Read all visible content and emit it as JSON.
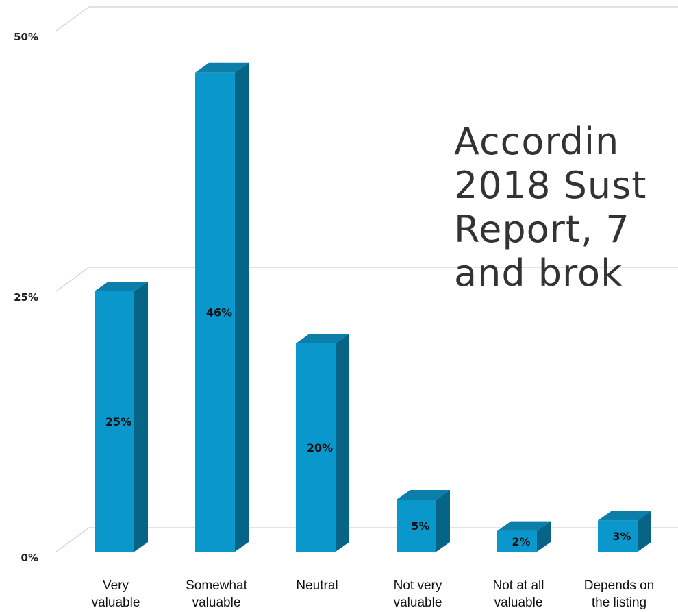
{
  "chart_data": {
    "type": "bar",
    "categories": [
      [
        "Very",
        "valuable"
      ],
      [
        "Somewhat",
        "valuable"
      ],
      [
        "Neutral"
      ],
      [
        "Not very",
        "valuable"
      ],
      [
        "Not at all",
        "valuable"
      ],
      [
        "Depends on",
        "the listing"
      ]
    ],
    "values": [
      25,
      46,
      20,
      5,
      2,
      3
    ],
    "data_labels": [
      "25%",
      "46%",
      "20%",
      "5%",
      "2%",
      "3%"
    ],
    "ylim": [
      0,
      50
    ],
    "yticks": [
      {
        "value": 0,
        "label": "0%"
      },
      {
        "value": 25,
        "label": "25%"
      },
      {
        "value": 50,
        "label": "50%"
      }
    ],
    "grid": true,
    "colors": {
      "bar_front": "#0a97cc",
      "bar_side": "#066487",
      "bar_top": "#0b7eaa",
      "grid": "#d9d9d9"
    }
  },
  "overlay_text": {
    "lines": [
      "Accordin",
      "2018 Sust",
      "Report, 7",
      "and brok"
    ]
  }
}
